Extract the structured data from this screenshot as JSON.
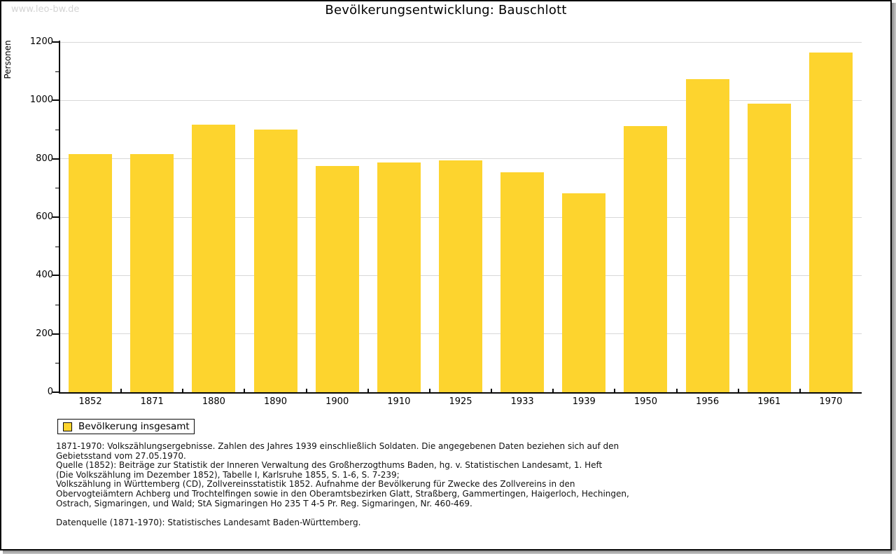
{
  "window": {
    "watermark": "www.leo-bw.de",
    "title": "Bevölkerungsentwicklung: Bauschlott"
  },
  "chart_data": {
    "type": "bar",
    "title": "Bevölkerungsentwicklung: Bauschlott",
    "xlabel": "",
    "ylabel": "Personen",
    "categories": [
      "1852",
      "1871",
      "1880",
      "1890",
      "1900",
      "1910",
      "1925",
      "1933",
      "1939",
      "1950",
      "1956",
      "1961",
      "1970"
    ],
    "values": [
      815,
      815,
      916,
      901,
      776,
      788,
      794,
      754,
      681,
      913,
      1074,
      989,
      1165
    ],
    "series_name": "Bevölkerung insgesamt",
    "ylim": [
      0,
      1200
    ],
    "ytick_step": 200,
    "yminor_step": 100,
    "grid": true,
    "bar_color": "#FDD42E",
    "legend_position": "bottom-left"
  },
  "legend": {
    "label": "Bevölkerung insgesamt",
    "swatch_color": "#FDD42E"
  },
  "footnotes": {
    "lines": [
      "1871-1970: Volkszählungsergebnisse. Zahlen des Jahres 1939 einschließlich Soldaten. Die angegebenen Daten beziehen sich auf den",
      "Gebietsstand vom 27.05.1970.",
      "Quelle (1852): Beiträge zur Statistik der Inneren Verwaltung des Großherzogthums Baden, hg. v. Statistischen Landesamt, 1. Heft",
      "(Die Volkszählung im Dezember 1852), Tabelle I, Karlsruhe 1855, S. 1-6, S. 7-239;",
      "Volkszählung in Württemberg (CD), Zollvereinsstatistik 1852. Aufnahme der Bevölkerung für Zwecke des Zollvereins in den",
      "Obervogteiämtern Achberg und Trochtelfingen sowie in den Oberamtsbezirken Glatt, Straßberg, Gammertingen, Haigerloch, Hechingen,",
      "Ostrach, Sigmaringen, und Wald; StA Sigmaringen Ho 235 T 4-5 Pr. Reg. Sigmaringen, Nr. 460-469."
    ],
    "datasource": "Datenquelle (1871-1970): Statistisches Landesamt Baden-Württemberg."
  },
  "colors": {
    "bar": "#FDD42E",
    "gridline": "#d8d8d8",
    "axis": "#0a0a0a",
    "watermark_text": "#d4d4d4",
    "background": "#ffffff"
  }
}
